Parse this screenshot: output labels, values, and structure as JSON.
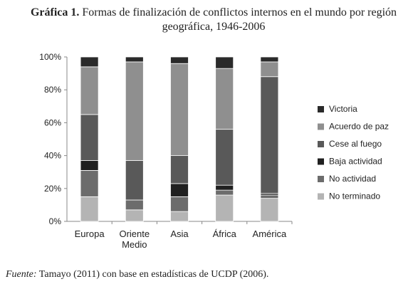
{
  "title": {
    "lead": "Gráfica 1.",
    "text": "Formas de finalización de conflictos internos en el mundo por región geográfica, 1946-2006"
  },
  "source": {
    "label": "Fuente:",
    "text": "Tamayo (2011) con base en estadísticas de UCDP (2006)."
  },
  "chart_data": {
    "type": "bar",
    "stacked": true,
    "percent_stacked": true,
    "categories": [
      [
        "Europa"
      ],
      [
        "Oriente",
        "Medio"
      ],
      [
        "Asia"
      ],
      [
        "África"
      ],
      [
        "América"
      ]
    ],
    "ylim": [
      0,
      100
    ],
    "yticks": [
      "0%",
      "20%",
      "40%",
      "60%",
      "80%",
      "100%"
    ],
    "grid": false,
    "legend_position": "right",
    "series": [
      {
        "name": "No terminado",
        "color": "#b4b4b4",
        "values": [
          15,
          7,
          6,
          16,
          14
        ]
      },
      {
        "name": "No actividad",
        "color": "#6c6c6c",
        "values": [
          16,
          6,
          9,
          3,
          2
        ]
      },
      {
        "name": "Baja actividad",
        "color": "#202020",
        "values": [
          6,
          0,
          8,
          3,
          1
        ]
      },
      {
        "name": "Cese al fuego",
        "color": "#595959",
        "values": [
          28,
          24,
          17,
          34,
          71
        ]
      },
      {
        "name": "Acuerdo de paz",
        "color": "#8f8f8f",
        "values": [
          29,
          60,
          56,
          37,
          9
        ]
      },
      {
        "name": "Victoria",
        "color": "#2a2a2a",
        "values": [
          6,
          3,
          4,
          7,
          3
        ]
      }
    ]
  }
}
